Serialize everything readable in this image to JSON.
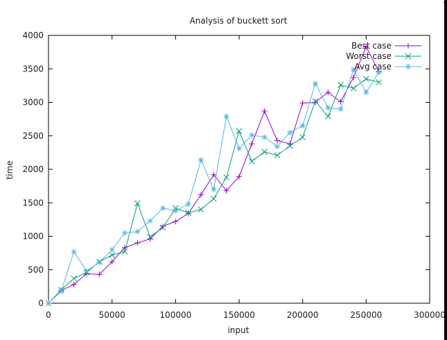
{
  "chart_data": {
    "type": "line",
    "title": "Analysis of buckett sort",
    "xlabel": "input",
    "ylabel": "time",
    "xlim": [
      0,
      300000
    ],
    "ylim": [
      0,
      4000
    ],
    "x_ticks": [
      0,
      50000,
      100000,
      150000,
      200000,
      250000,
      300000
    ],
    "x_tick_labels": [
      "0",
      "50000",
      "100000",
      "150000",
      "200000",
      "250000",
      "300000"
    ],
    "y_ticks": [
      0,
      500,
      1000,
      1500,
      2000,
      2500,
      3000,
      3500,
      4000
    ],
    "y_tick_labels": [
      "0",
      "500",
      "1000",
      "1500",
      "2000",
      "2500",
      "3000",
      "3500",
      "4000"
    ],
    "grid": false,
    "legend_position": "top-right",
    "x": [
      0,
      10000,
      20000,
      30000,
      40000,
      50000,
      60000,
      70000,
      80000,
      90000,
      100000,
      110000,
      120000,
      130000,
      140000,
      150000,
      160000,
      170000,
      180000,
      190000,
      200000,
      210000,
      220000,
      230000,
      240000,
      250000,
      260000
    ],
    "series": [
      {
        "name": "Best case",
        "color": "#9400d3",
        "marker": "plus",
        "values": [
          0,
          190,
          280,
          440,
          430,
          620,
          830,
          900,
          960,
          1150,
          1220,
          1340,
          1620,
          1920,
          1680,
          1890,
          2380,
          2870,
          2430,
          2380,
          2990,
          3000,
          3150,
          3010,
          3370,
          3830,
          3460
        ]
      },
      {
        "name": "Worst case",
        "color": "#009e73",
        "marker": "cross",
        "values": [
          0,
          200,
          370,
          460,
          620,
          720,
          770,
          1490,
          990,
          1130,
          1420,
          1350,
          1400,
          1560,
          1880,
          2570,
          2120,
          2260,
          2210,
          2350,
          2480,
          3020,
          2790,
          3260,
          3210,
          3350,
          3300
        ]
      },
      {
        "name": "Avg case",
        "color": "#56b4e9",
        "marker": "star",
        "values": [
          0,
          180,
          770,
          480,
          610,
          800,
          1050,
          1070,
          1230,
          1420,
          1380,
          1480,
          2140,
          1700,
          2790,
          2310,
          2510,
          2480,
          2340,
          2550,
          2650,
          3280,
          2920,
          2900,
          3490,
          3150,
          3450
        ]
      }
    ]
  }
}
